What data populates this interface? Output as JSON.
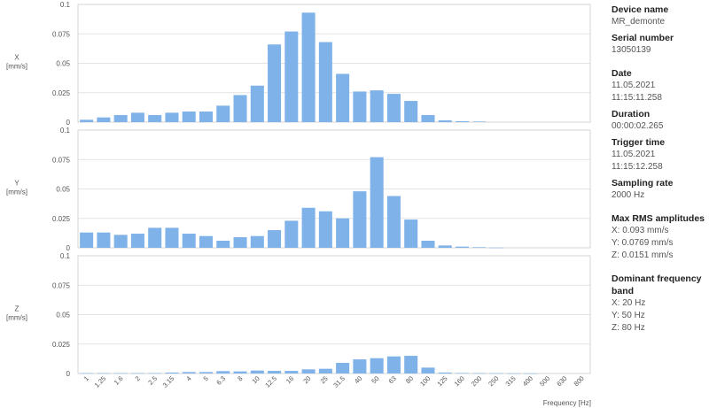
{
  "chart_data": [
    {
      "type": "bar",
      "ylabel": "X [mm/s]",
      "ylim": [
        0,
        0.1
      ],
      "yticks": [
        "0",
        "0.025",
        "0.05",
        "0.075",
        "0.1"
      ],
      "categories": [
        "1",
        "1.25",
        "1.6",
        "2",
        "2.5",
        "3.15",
        "4",
        "5",
        "6.3",
        "8",
        "10",
        "12.5",
        "16",
        "20",
        "25",
        "31.5",
        "40",
        "50",
        "63",
        "80",
        "100",
        "125",
        "160",
        "200",
        "250",
        "315",
        "400",
        "500",
        "630",
        "800"
      ],
      "values": [
        0.002,
        0.004,
        0.006,
        0.008,
        0.006,
        0.008,
        0.009,
        0.009,
        0.014,
        0.023,
        0.031,
        0.066,
        0.077,
        0.093,
        0.068,
        0.041,
        0.026,
        0.027,
        0.024,
        0.018,
        0.006,
        0.0015,
        0.0008,
        0.0005,
        0,
        0,
        0,
        0,
        0,
        0
      ],
      "color": "#7fb2e8"
    },
    {
      "type": "bar",
      "ylabel": "Y [mm/s]",
      "ylim": [
        0,
        0.1
      ],
      "yticks": [
        "0",
        "0.025",
        "0.05",
        "0.075",
        "0.1"
      ],
      "categories": [
        "1",
        "1.25",
        "1.6",
        "2",
        "2.5",
        "3.15",
        "4",
        "5",
        "6.3",
        "8",
        "10",
        "12.5",
        "16",
        "20",
        "25",
        "31.5",
        "40",
        "50",
        "63",
        "80",
        "100",
        "125",
        "160",
        "200",
        "250",
        "315",
        "400",
        "500",
        "630",
        "800"
      ],
      "values": [
        0.013,
        0.013,
        0.011,
        0.012,
        0.017,
        0.017,
        0.012,
        0.01,
        0.006,
        0.009,
        0.01,
        0.015,
        0.023,
        0.034,
        0.031,
        0.025,
        0.048,
        0.077,
        0.044,
        0.024,
        0.006,
        0.002,
        0.001,
        0.0005,
        0.0002,
        0,
        0,
        0,
        0,
        0
      ],
      "color": "#7fb2e8"
    },
    {
      "type": "bar",
      "ylabel": "Z [mm/s]",
      "ylim": [
        0,
        0.1
      ],
      "yticks": [
        "0",
        "0.025",
        "0.05",
        "0.075",
        "0.1"
      ],
      "categories": [
        "1",
        "1.25",
        "1.6",
        "2",
        "2.5",
        "3.15",
        "4",
        "5",
        "6.3",
        "8",
        "10",
        "12.5",
        "16",
        "20",
        "25",
        "31.5",
        "40",
        "50",
        "63",
        "80",
        "100",
        "125",
        "160",
        "200",
        "250",
        "315",
        "400",
        "500",
        "630",
        "800"
      ],
      "values": [
        0.0003,
        0.0003,
        0.0003,
        0.0003,
        0.0003,
        0.0008,
        0.0012,
        0.0012,
        0.002,
        0.0018,
        0.0025,
        0.0022,
        0.0022,
        0.0035,
        0.004,
        0.009,
        0.012,
        0.013,
        0.0145,
        0.015,
        0.005,
        0.0008,
        0.0004,
        0.0003,
        0.0002,
        0.0001,
        0.0001,
        0,
        0,
        0
      ],
      "color": "#7fb2e8"
    }
  ],
  "xlabel": "Frequency [Hz]",
  "info": {
    "device_name_label": "Device name",
    "device_name": "MR_demonte",
    "serial_label": "Serial number",
    "serial": "13050139",
    "date_label": "Date",
    "date": "11.05.2021 11:15:11.258",
    "duration_label": "Duration",
    "duration": "00:00:02.265",
    "trigger_label": "Trigger time",
    "trigger": "11.05.2021 11:15:12.258",
    "sampling_label": "Sampling rate",
    "sampling": "2000 Hz",
    "rms_label": "Max RMS amplitudes",
    "rms_x": "X: 0.093 mm/s",
    "rms_y": "Y: 0.0769 mm/s",
    "rms_z": "Z: 0.0151 mm/s",
    "dominant_label": "Dominant frequency band",
    "dom_x": "X: 20 Hz",
    "dom_y": "Y: 50 Hz",
    "dom_z": "Z: 80 Hz"
  }
}
